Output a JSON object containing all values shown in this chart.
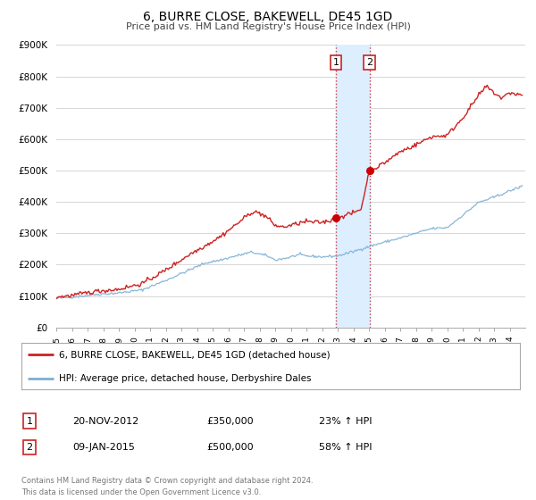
{
  "title": "6, BURRE CLOSE, BAKEWELL, DE45 1GD",
  "subtitle": "Price paid vs. HM Land Registry's House Price Index (HPI)",
  "legend_line1": "6, BURRE CLOSE, BAKEWELL, DE45 1GD (detached house)",
  "legend_line2": "HPI: Average price, detached house, Derbyshire Dales",
  "transaction1_date": "20-NOV-2012",
  "transaction1_price": 350000,
  "transaction1_label": "23% ↑ HPI",
  "transaction1_x": 2012.89,
  "transaction2_date": "09-JAN-2015",
  "transaction2_price": 500000,
  "transaction2_label": "58% ↑ HPI",
  "transaction2_x": 2015.03,
  "hpi_color": "#7bafd4",
  "price_color": "#cc2222",
  "dot_color": "#cc0000",
  "shade_color": "#ddeeff",
  "xmin": 1995,
  "xmax": 2025,
  "ymin": 0,
  "ymax": 900000,
  "yticks": [
    0,
    100000,
    200000,
    300000,
    400000,
    500000,
    600000,
    700000,
    800000,
    900000
  ],
  "ytick_labels": [
    "£0",
    "£100K",
    "£200K",
    "£300K",
    "£400K",
    "£500K",
    "£600K",
    "£700K",
    "£800K",
    "£900K"
  ],
  "footer": "Contains HM Land Registry data © Crown copyright and database right 2024.\nThis data is licensed under the Open Government Licence v3.0.",
  "background_color": "#ffffff",
  "plot_bg_color": "#ffffff",
  "hpi_anchors_x": [
    1995.0,
    1996.0,
    1997.5,
    1999.0,
    2000.5,
    2002.0,
    2003.5,
    2004.5,
    2005.5,
    2006.5,
    2007.5,
    2008.5,
    2009.0,
    2009.8,
    2010.5,
    2011.0,
    2012.0,
    2013.0,
    2014.0,
    2015.0,
    2016.0,
    2017.0,
    2018.0,
    2019.0,
    2020.0,
    2021.0,
    2022.0,
    2023.0,
    2024.0,
    2024.8
  ],
  "hpi_anchors_y": [
    93000,
    97000,
    105000,
    110000,
    120000,
    150000,
    183000,
    205000,
    215000,
    228000,
    240000,
    228000,
    215000,
    222000,
    232000,
    228000,
    225000,
    228000,
    242000,
    258000,
    272000,
    285000,
    300000,
    315000,
    318000,
    358000,
    398000,
    415000,
    435000,
    450000
  ],
  "price_anchors_x": [
    1995.0,
    1996.0,
    1997.5,
    1999.0,
    2000.5,
    2002.0,
    2003.5,
    2004.5,
    2005.5,
    2006.5,
    2007.5,
    2008.0,
    2008.5,
    2009.0,
    2009.5,
    2010.0,
    2010.5,
    2011.0,
    2011.5,
    2012.0,
    2012.5,
    2012.89,
    2013.0,
    2013.5,
    2014.0,
    2014.5,
    2015.03,
    2015.5,
    2016.0,
    2017.0,
    2018.0,
    2019.0,
    2020.0,
    2021.0,
    2022.0,
    2022.5,
    2023.0,
    2023.5,
    2024.0,
    2024.8
  ],
  "price_anchors_y": [
    97000,
    102000,
    115000,
    122000,
    140000,
    183000,
    232000,
    260000,
    290000,
    328000,
    368000,
    365000,
    350000,
    325000,
    320000,
    325000,
    332000,
    338000,
    335000,
    335000,
    340000,
    350000,
    352000,
    358000,
    365000,
    378000,
    500000,
    510000,
    525000,
    560000,
    582000,
    608000,
    612000,
    668000,
    738000,
    768000,
    748000,
    730000,
    748000,
    740000
  ]
}
